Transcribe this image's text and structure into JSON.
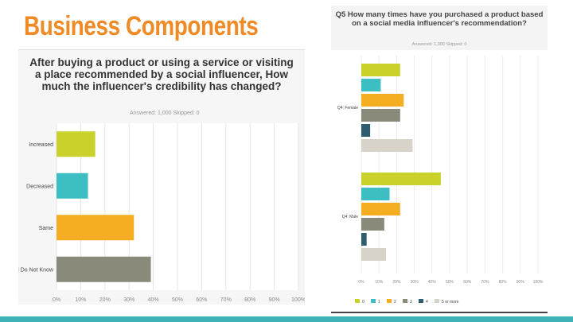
{
  "slide": {
    "title": "Business Components"
  },
  "colors": {
    "accent": "#f08a24",
    "bottom_bar": "#3eb2b6",
    "series": [
      "#c9d22a",
      "#3dbec3",
      "#f5ad22",
      "#8a8a7a",
      "#2f5c6e",
      "#d7d3c8"
    ]
  },
  "left_chart": {
    "question": "After buying a product or using a service or visiting a place recommended by a social influencer, How much the influencer's credibility has changed?",
    "answered": "Answered: 1,000    Skipped: 0"
  },
  "right_chart": {
    "question": "Q5 How many times have you purchased a product based on a social media influencer's recommendation?",
    "answered": "Answered: 1,000    Skipped: 0"
  },
  "chart_data": [
    {
      "type": "bar",
      "orientation": "horizontal",
      "title": "After buying a product or using a service or visiting a place recommended by a social influencer, How much the influencer's credibility has changed?",
      "categories": [
        "Increased",
        "Decreased",
        "Same",
        "I Do Not Know"
      ],
      "values": [
        16,
        13,
        32,
        39
      ],
      "colors": [
        "#c9d22a",
        "#3dbec3",
        "#f5ad22",
        "#8a8a7a"
      ],
      "x_ticks": [
        "0%",
        "10%",
        "20%",
        "30%",
        "40%",
        "50%",
        "60%",
        "70%",
        "80%",
        "90%",
        "100%"
      ],
      "xlim": [
        0,
        100
      ],
      "grid": true
    },
    {
      "type": "bar",
      "orientation": "horizontal",
      "title": "Q5 How many times have you purchased a product based on a social media influencer's recommendation?",
      "categories": [
        "Q4: Female",
        "Q4: Male"
      ],
      "legend": [
        "0",
        "1",
        "2",
        "3",
        "4",
        "5 or more"
      ],
      "series": [
        {
          "name": "0",
          "values": [
            22,
            45
          ]
        },
        {
          "name": "1",
          "values": [
            11,
            16
          ]
        },
        {
          "name": "2",
          "values": [
            24,
            22
          ]
        },
        {
          "name": "3",
          "values": [
            22,
            13
          ]
        },
        {
          "name": "4",
          "values": [
            5,
            3
          ]
        },
        {
          "name": "5 or more",
          "values": [
            29,
            14
          ]
        }
      ],
      "x_ticks": [
        "0%",
        "10%",
        "20%",
        "30%",
        "40%",
        "50%",
        "60%",
        "70%",
        "80%",
        "90%",
        "100%"
      ],
      "xlim": [
        0,
        100
      ],
      "legend_position": "bottom",
      "grid": true
    }
  ]
}
